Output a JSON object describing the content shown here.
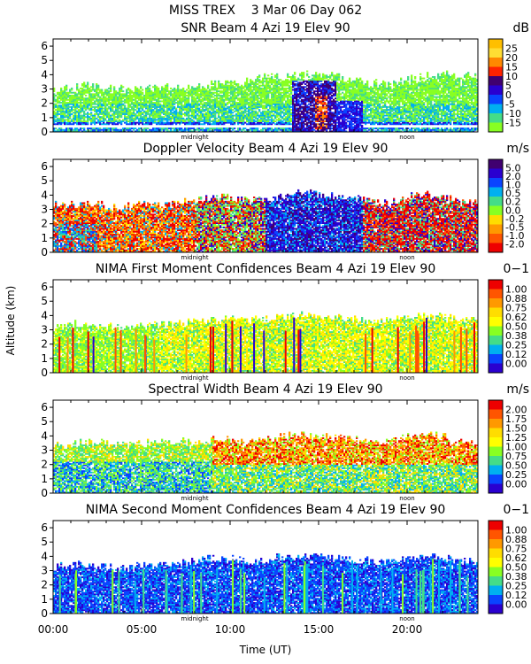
{
  "header": {
    "line1": "MISS TREX    3 Mar 06 Day 062"
  },
  "y_axis_label": "Altitude (km)",
  "x_axis_label": "Time (UT)",
  "x_ticks": [
    "00:00",
    "05:00",
    "10:00",
    "15:00",
    "20:00"
  ],
  "time_markers": {
    "midnight": "midnight",
    "noon": "noon"
  },
  "chart_data": [
    {
      "type": "heatmap",
      "title": "SNR Beam 4 Azi   19 Elev 90",
      "unit": "dB",
      "xlabel": "Time (UT)",
      "ylabel": "Altitude (km)",
      "xlim": [
        0,
        24
      ],
      "ylim": [
        0,
        6.5
      ],
      "y_ticks": [
        0,
        1,
        2,
        3,
        4,
        5,
        6
      ],
      "colorbar": {
        "labels": [
          "25",
          "20",
          "15",
          "10",
          "5",
          "0",
          "-5",
          "-10",
          "-15"
        ],
        "colors": [
          "#ffbf00",
          "#ffdd33",
          "#ff8800",
          "#ff2200",
          "#400070",
          "#2a00d0",
          "#0a44ff",
          "#00b0f0",
          "#44dd88",
          "#88ff22"
        ]
      },
      "echo_top_km": [
        2.8,
        3.0,
        3.2,
        3.0,
        2.9,
        3.1,
        3.0,
        3.2,
        3.1,
        3.3,
        3.4,
        3.5,
        3.8,
        3.8,
        3.9,
        4.0,
        3.9,
        3.6,
        3.4,
        3.3,
        3.6,
        3.8,
        4.0,
        3.9
      ],
      "color_rules": [
        {
          "from": 0.5,
          "to": 0.7,
          "colors": [
            "#2a00d0",
            "#0a44ff",
            "#00b0f0"
          ]
        },
        {
          "from": 0.0,
          "to": 0.3,
          "colors": [
            "#0a44ff",
            "#00b0f0",
            "#44dd88"
          ]
        },
        {
          "from": 0.7,
          "to": 2.0,
          "colors": [
            "#44dd88",
            "#00b0f0",
            "#88ff22"
          ]
        },
        {
          "from": 2.0,
          "to": 5.0,
          "colors": [
            "#88ff22",
            "#44dd88",
            "#88ff22"
          ]
        },
        {
          "t0": 13.5,
          "t1": 16.0,
          "from": 0.0,
          "to": 3.6,
          "colors": [
            "#2a00d0",
            "#400070",
            "#0a44ff",
            "#400070"
          ]
        },
        {
          "t0": 14.8,
          "t1": 15.5,
          "from": 0.2,
          "to": 2.5,
          "colors": [
            "#ff2200",
            "#ff8800",
            "#400070"
          ]
        },
        {
          "t0": 16.0,
          "t1": 17.5,
          "from": 0.0,
          "to": 2.2,
          "colors": [
            "#2a00d0",
            "#0a44ff"
          ]
        }
      ],
      "fill": 0.85
    },
    {
      "type": "heatmap",
      "title": "Doppler Velocity Beam 4 Azi   19 Elev 90",
      "unit": "m/s",
      "xlabel": "Time (UT)",
      "ylabel": "Altitude (km)",
      "xlim": [
        0,
        24
      ],
      "ylim": [
        0,
        6.5
      ],
      "y_ticks": [
        0,
        1,
        2,
        3,
        4,
        5,
        6
      ],
      "colorbar": {
        "labels": [
          "5.0",
          "2.0",
          "1.0",
          "0.5",
          "0.2",
          "0.0",
          "-0.2",
          "-0.5",
          "-1.0",
          "-2.0"
        ],
        "colors": [
          "#400070",
          "#2a00d0",
          "#0a44ff",
          "#00b0f0",
          "#44dd88",
          "#88ff22",
          "#ffdd00",
          "#ff9900",
          "#ff5500",
          "#ee0000"
        ]
      },
      "echo_top_km": [
        3.2,
        3.3,
        3.4,
        3.2,
        3.1,
        3.3,
        3.2,
        3.3,
        3.6,
        3.8,
        3.8,
        3.6,
        3.7,
        3.9,
        4.2,
        4.0,
        3.9,
        3.7,
        3.5,
        3.4,
        3.8,
        4.0,
        3.8,
        3.4
      ],
      "color_rules": [
        {
          "from": 0.0,
          "to": 5.0,
          "colors": [
            "#ee0000",
            "#ff5500",
            "#ff9900",
            "#ffdd00",
            "#ee0000",
            "#00b0f0"
          ]
        },
        {
          "t0": 0.0,
          "t1": 2.5,
          "from": 0.0,
          "to": 2.0,
          "colors": [
            "#ee0000",
            "#00b0f0",
            "#0a44ff",
            "#ff5500",
            "#44dd88"
          ]
        },
        {
          "t0": 8.0,
          "t1": 12.0,
          "from": 0.0,
          "to": 5.0,
          "colors": [
            "#ee0000",
            "#44dd88",
            "#ff5500",
            "#88ff22",
            "#2a00d0"
          ]
        },
        {
          "t0": 12.0,
          "t1": 17.5,
          "from": 0.0,
          "to": 5.0,
          "colors": [
            "#2a00d0",
            "#0a44ff",
            "#00b0f0",
            "#2a00d0",
            "#400070"
          ]
        },
        {
          "t0": 17.5,
          "t1": 24.0,
          "from": 0.0,
          "to": 5.0,
          "colors": [
            "#ee0000",
            "#ff5500",
            "#ee0000",
            "#2a00d0",
            "#44dd88"
          ]
        }
      ],
      "fill": 0.9
    },
    {
      "type": "heatmap",
      "title": "NIMA First Moment Confidences Beam 4 Azi   19 Elev 90",
      "unit": "0−1",
      "xlabel": "Time (UT)",
      "ylabel": "Altitude (km)",
      "xlim": [
        0,
        24
      ],
      "ylim": [
        0,
        6.5
      ],
      "y_ticks": [
        0,
        1,
        2,
        3,
        4,
        5,
        6
      ],
      "colorbar": {
        "labels": [
          "1.00",
          "0.88",
          "0.75",
          "0.62",
          "0.50",
          "0.38",
          "0.25",
          "0.12",
          "0.00"
        ],
        "colors": [
          "#ee0000",
          "#ff5500",
          "#ff9900",
          "#ffdd00",
          "#ffff00",
          "#88ff22",
          "#44dd88",
          "#00b0f0",
          "#0a44ff",
          "#2a00d0"
        ]
      },
      "echo_top_km": [
        3.1,
        3.3,
        3.4,
        3.2,
        3.1,
        3.3,
        3.3,
        3.4,
        3.5,
        3.6,
        3.7,
        3.6,
        3.7,
        3.9,
        4.0,
        4.0,
        3.8,
        3.7,
        3.5,
        3.6,
        3.8,
        3.9,
        3.8,
        3.7
      ],
      "color_rules": [
        {
          "from": 0.0,
          "to": 5.0,
          "colors": [
            "#ffff00",
            "#ffff00",
            "#88ff22",
            "#ffdd00",
            "#44dd88"
          ]
        },
        {
          "t0": 0.0,
          "t1": 6.0,
          "from": 0.0,
          "to": 5.0,
          "colors": [
            "#ffff00",
            "#88ff22",
            "#44dd88",
            "#88ff22"
          ]
        }
      ],
      "streaks": {
        "count": 38,
        "colors": [
          "#ee0000",
          "#ff5500",
          "#ff9900",
          "#2a00d0"
        ]
      },
      "fill": 0.88
    },
    {
      "type": "heatmap",
      "title": "Spectral Width Beam 4 Azi   19 Elev 90",
      "unit": "m/s",
      "xlabel": "Time (UT)",
      "ylabel": "Altitude (km)",
      "xlim": [
        0,
        24
      ],
      "ylim": [
        0,
        6.5
      ],
      "y_ticks": [
        0,
        1,
        2,
        3,
        4,
        5,
        6
      ],
      "colorbar": {
        "labels": [
          "2.00",
          "1.75",
          "1.50",
          "1.25",
          "1.00",
          "0.75",
          "0.50",
          "0.25",
          "0.00"
        ],
        "colors": [
          "#ee0000",
          "#ff5500",
          "#ff9900",
          "#ffdd00",
          "#ffff00",
          "#88ff22",
          "#44dd88",
          "#00b0f0",
          "#0a44ff",
          "#2a00d0"
        ]
      },
      "echo_top_km": [
        3.3,
        3.4,
        3.5,
        3.4,
        3.3,
        3.4,
        3.5,
        3.5,
        3.6,
        3.7,
        3.7,
        3.6,
        3.7,
        3.9,
        4.0,
        4.0,
        3.9,
        3.7,
        3.5,
        3.5,
        3.9,
        4.1,
        3.9,
        3.5
      ],
      "color_rules": [
        {
          "from": 0.0,
          "to": 2.2,
          "colors": [
            "#00b0f0",
            "#44dd88",
            "#0a44ff",
            "#88ff22"
          ]
        },
        {
          "from": 2.2,
          "to": 5.0,
          "colors": [
            "#88ff22",
            "#44dd88",
            "#ffdd00"
          ]
        },
        {
          "t0": 9.0,
          "t1": 24.0,
          "from": 2.0,
          "to": 5.0,
          "colors": [
            "#ffdd00",
            "#ff9900",
            "#88ff22",
            "#ff5500",
            "#ee0000"
          ]
        },
        {
          "t0": 9.0,
          "t1": 24.0,
          "from": 0.0,
          "to": 2.0,
          "colors": [
            "#88ff22",
            "#44dd88",
            "#00b0f0",
            "#ffdd00"
          ]
        }
      ],
      "fill": 0.82
    },
    {
      "type": "heatmap",
      "title": "NIMA Second Moment Confidences Beam 4 Azi   19 Elev 90",
      "unit": "0−1",
      "xlabel": "Time (UT)",
      "ylabel": "Altitude (km)",
      "xlim": [
        0,
        24
      ],
      "ylim": [
        0,
        6.5
      ],
      "y_ticks": [
        0,
        1,
        2,
        3,
        4,
        5,
        6
      ],
      "colorbar": {
        "labels": [
          "1.00",
          "0.88",
          "0.75",
          "0.62",
          "0.50",
          "0.38",
          "0.25",
          "0.12",
          "0.00"
        ],
        "colors": [
          "#ee0000",
          "#ff5500",
          "#ff9900",
          "#ffdd00",
          "#ffff00",
          "#88ff22",
          "#44dd88",
          "#00b0f0",
          "#0a44ff",
          "#2a00d0"
        ]
      },
      "echo_top_km": [
        3.2,
        3.3,
        3.4,
        3.2,
        3.1,
        3.3,
        3.3,
        3.4,
        3.6,
        3.8,
        3.8,
        3.6,
        3.7,
        3.9,
        4.0,
        4.0,
        3.8,
        3.7,
        3.6,
        3.6,
        3.8,
        4.0,
        3.9,
        3.6
      ],
      "color_rules": [
        {
          "from": 0.0,
          "to": 5.0,
          "colors": [
            "#0a44ff",
            "#2a00d0",
            "#00b0f0",
            "#0a44ff"
          ]
        }
      ],
      "streaks": {
        "count": 45,
        "colors": [
          "#44dd88",
          "#00b0f0",
          "#88ff22"
        ]
      },
      "fill": 0.88
    }
  ]
}
